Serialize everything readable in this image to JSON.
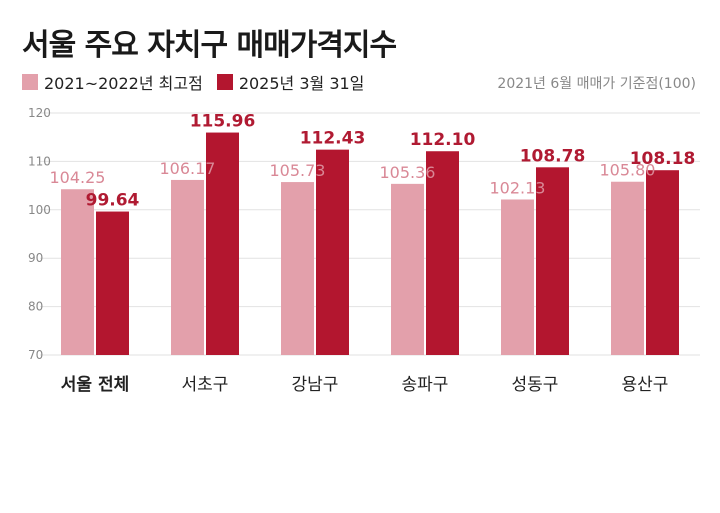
{
  "chart_data": {
    "type": "bar",
    "title": "서울 주요 자치구 매매가격지수",
    "note": "2021년 6월 매매가 기준점(100)",
    "categories": [
      "서울 전체",
      "서초구",
      "강남구",
      "송파구",
      "성동구",
      "용산구"
    ],
    "highlight_category": "서울 전체",
    "series": [
      {
        "name": "2021~2022년 최고점",
        "color": "#e3a0ab",
        "values": [
          104.25,
          106.17,
          105.73,
          105.36,
          102.13,
          105.8
        ],
        "labels": [
          "104.25",
          "106.17",
          "105.73",
          "105.36",
          "102.13",
          "105.80"
        ]
      },
      {
        "name": "2025년 3월 31일",
        "color": "#b3162f",
        "values": [
          99.64,
          115.96,
          112.43,
          112.1,
          108.78,
          108.18
        ],
        "labels": [
          "99.64",
          "115.96",
          "112.43",
          "112.10",
          "108.78",
          "108.18"
        ]
      }
    ],
    "yticks": [
      70,
      80,
      90,
      100,
      110,
      120
    ],
    "ylim": [
      70,
      120
    ],
    "grid": true,
    "xlabel": "",
    "ylabel": ""
  }
}
